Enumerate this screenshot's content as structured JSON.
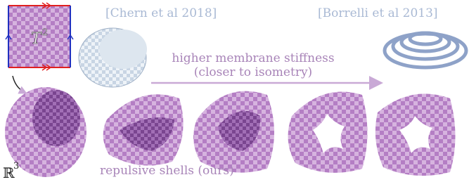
{
  "figure": {
    "torus_label": {
      "base": "T",
      "exponent": "2"
    },
    "citations": [
      "[Chern et al 2018]",
      "[Borrelli et al 2013]"
    ],
    "arrow_label": [
      "higher membrane stiffness",
      "(closer to isometry)"
    ],
    "caption": "repulsive shells (ours)",
    "space_label": {
      "base": "ℝ",
      "exponent": "3"
    }
  }
}
